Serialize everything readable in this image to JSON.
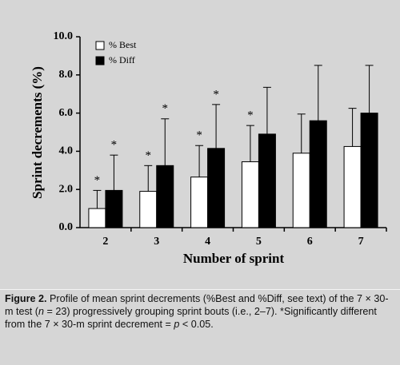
{
  "chart_data": {
    "type": "bar",
    "y_label": "Sprint decrements  (%)",
    "x_label": "Number of sprint",
    "categories": [
      "2",
      "3",
      "4",
      "5",
      "6",
      "7"
    ],
    "series": [
      {
        "name": "% Best",
        "color": "#ffffff",
        "values": [
          1.0,
          1.9,
          2.65,
          3.45,
          3.9,
          4.25
        ],
        "errors": [
          0.95,
          1.35,
          1.65,
          1.9,
          2.05,
          2.0
        ],
        "significant": [
          "*",
          "*",
          "*",
          "*",
          null,
          null
        ]
      },
      {
        "name": "% Diff",
        "color": "#000000",
        "values": [
          1.95,
          3.25,
          4.15,
          4.9,
          5.6,
          6.0
        ],
        "errors": [
          1.85,
          2.45,
          2.3,
          2.45,
          2.9,
          2.5
        ],
        "significant": [
          "*",
          "*",
          "*",
          null,
          null,
          null
        ]
      }
    ],
    "ylim": [
      0,
      10
    ],
    "yticks": [
      {
        "value": 0,
        "label": "0.0"
      },
      {
        "value": 2,
        "label": "2.0"
      },
      {
        "value": 4,
        "label": "4.0"
      },
      {
        "value": 6,
        "label": "6.0"
      },
      {
        "value": 8,
        "label": "8.0"
      },
      {
        "value": 10,
        "label": "10.0"
      }
    ],
    "legend": "top-left"
  },
  "caption": {
    "label": "Figure 2.",
    "segments": [
      "Profile of mean sprint decrements (%Best and %Diff, see text) of the 7 × 30-m test (",
      "n",
      " = 23) progressively grouping sprint bouts (i.e., 2–7). *Significantly different from the 7 × 30-m sprint decrement = ",
      "p",
      " < 0.05."
    ]
  }
}
